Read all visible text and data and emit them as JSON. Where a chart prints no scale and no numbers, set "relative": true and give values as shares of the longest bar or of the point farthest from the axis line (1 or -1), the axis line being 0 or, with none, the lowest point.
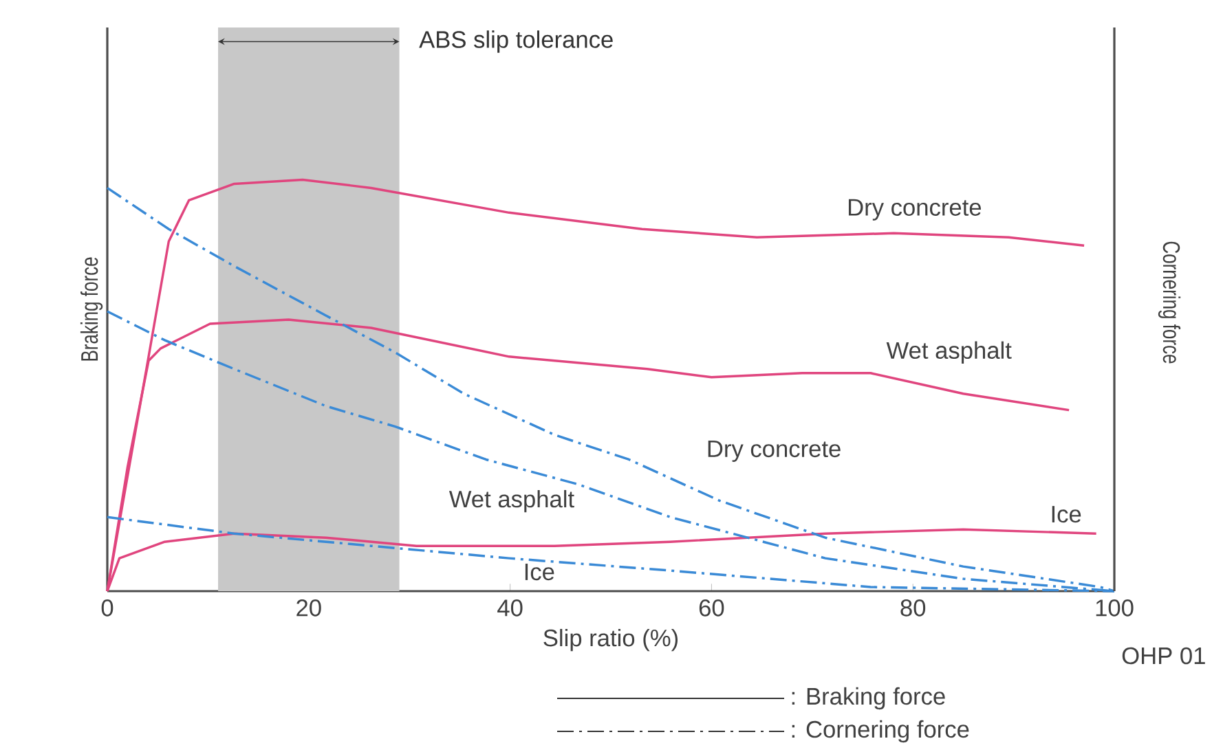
{
  "chart_data": {
    "type": "line",
    "relative": true,
    "xlabel": "Slip ratio (%)",
    "ylabel": "Braking force",
    "y2label": "Cornering force",
    "xlim": [
      0,
      100
    ],
    "xticks": [
      0,
      20,
      40,
      60,
      80,
      100
    ],
    "grid": false,
    "marker": "none",
    "series": [
      {
        "name": "Dry concrete",
        "color": "#e0457e",
        "line_style": "solid",
        "x": [
          0,
          4.1,
          6.1,
          8.1,
          12.6,
          19.4,
          26.2,
          39.9,
          53.1,
          64.5,
          78.1,
          89.5,
          97
        ],
        "values": [
          0,
          0.57,
          0.85,
          0.95,
          0.99,
          1.0,
          0.98,
          0.92,
          0.88,
          0.86,
          0.87,
          0.86,
          0.84
        ]
      },
      {
        "name": "Wet asphalt",
        "color": "#e0457e",
        "line_style": "solid",
        "x": [
          0,
          2,
          4.1,
          5.3,
          10.2,
          18,
          26.2,
          39.9,
          53.6,
          60,
          69,
          75.8,
          85,
          95.5
        ],
        "values": [
          0,
          0.3,
          0.56,
          0.59,
          0.65,
          0.66,
          0.64,
          0.57,
          0.54,
          0.52,
          0.53,
          0.53,
          0.48,
          0.44
        ]
      },
      {
        "name": "Ice",
        "color": "#e0457e",
        "line_style": "solid",
        "x": [
          0,
          1.2,
          5.7,
          12.6,
          21.7,
          30.7,
          44.4,
          55.9,
          71.3,
          85,
          98.2
        ],
        "values": [
          0,
          0.08,
          0.12,
          0.14,
          0.13,
          0.11,
          0.11,
          0.12,
          0.14,
          0.15,
          0.14
        ]
      },
      {
        "name": "Dry concrete",
        "color": "#3a8ad6",
        "line_style": "dashdot",
        "x": [
          0,
          6.1,
          12.6,
          21.7,
          28.6,
          35.4,
          44.4,
          51.8,
          60.8,
          71.3,
          85,
          98.6,
          100
        ],
        "values": [
          0.98,
          0.88,
          0.79,
          0.67,
          0.58,
          0.48,
          0.38,
          0.32,
          0.22,
          0.13,
          0.06,
          0.01,
          0
        ]
      },
      {
        "name": "Wet asphalt",
        "color": "#3a8ad6",
        "line_style": "dashdot",
        "x": [
          0,
          5.7,
          12.6,
          21.7,
          28.6,
          37.6,
          46.7,
          55.9,
          71.3,
          85,
          100
        ],
        "values": [
          0.68,
          0.61,
          0.54,
          0.45,
          0.4,
          0.32,
          0.26,
          0.18,
          0.08,
          0.03,
          0
        ]
      },
      {
        "name": "Ice",
        "color": "#3a8ad6",
        "line_style": "dashdot",
        "x": [
          0,
          12.6,
          26.2,
          39.9,
          55.9,
          75.8,
          100
        ],
        "values": [
          0.18,
          0.14,
          0.11,
          0.08,
          0.05,
          0.01,
          0
        ]
      }
    ],
    "bands": [
      {
        "axis": "x",
        "from": 11,
        "to": 29,
        "label": "ABS slip tolerance",
        "color": "#c8c8c8"
      }
    ],
    "annotations": [
      "OHP 01",
      ": Braking force",
      ": Cornering force"
    ]
  }
}
